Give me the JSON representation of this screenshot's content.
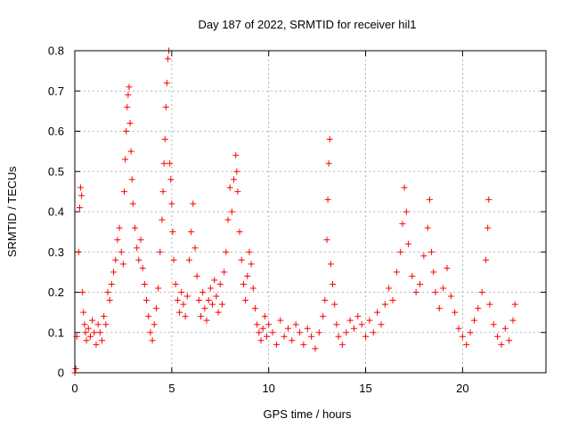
{
  "chart_data": {
    "type": "scatter",
    "title": "Day 187 of 2022, SRMTID for receiver hil1",
    "xlabel": "GPS time / hours",
    "ylabel": "SRMTID / TECUs",
    "xlim": [
      0,
      24.3
    ],
    "ylim": [
      0,
      0.8
    ],
    "x_ticks": [
      0,
      5,
      10,
      15,
      20
    ],
    "x_tick_labels": [
      "0",
      "5",
      "10",
      "15",
      "20"
    ],
    "y_ticks": [
      0,
      0.1,
      0.2,
      0.3,
      0.4,
      0.5,
      0.6,
      0.7,
      0.8
    ],
    "y_tick_labels": [
      "0",
      "0.1",
      "0.2",
      "0.3",
      "0.4",
      "0.5",
      "0.6",
      "0.7",
      "0.8"
    ],
    "grid": true,
    "marker": "plus",
    "color": "#ff0000",
    "series": [
      {
        "name": "SRMTID",
        "points": [
          [
            0.0,
            0.0
          ],
          [
            0.05,
            0.01
          ],
          [
            0.1,
            0.09
          ],
          [
            0.2,
            0.3
          ],
          [
            0.25,
            0.41
          ],
          [
            0.3,
            0.46
          ],
          [
            0.35,
            0.44
          ],
          [
            0.4,
            0.2
          ],
          [
            0.45,
            0.15
          ],
          [
            0.5,
            0.12
          ],
          [
            0.55,
            0.1
          ],
          [
            0.6,
            0.08
          ],
          [
            0.7,
            0.11
          ],
          [
            0.8,
            0.09
          ],
          [
            0.9,
            0.13
          ],
          [
            1.0,
            0.1
          ],
          [
            1.1,
            0.07
          ],
          [
            1.2,
            0.12
          ],
          [
            1.3,
            0.1
          ],
          [
            1.4,
            0.08
          ],
          [
            1.5,
            0.14
          ],
          [
            1.6,
            0.12
          ],
          [
            1.7,
            0.2
          ],
          [
            1.8,
            0.18
          ],
          [
            1.9,
            0.22
          ],
          [
            2.0,
            0.25
          ],
          [
            2.1,
            0.28
          ],
          [
            2.2,
            0.33
          ],
          [
            2.3,
            0.36
          ],
          [
            2.4,
            0.3
          ],
          [
            2.5,
            0.27
          ],
          [
            2.55,
            0.45
          ],
          [
            2.6,
            0.53
          ],
          [
            2.65,
            0.6
          ],
          [
            2.7,
            0.66
          ],
          [
            2.75,
            0.69
          ],
          [
            2.8,
            0.71
          ],
          [
            2.85,
            0.62
          ],
          [
            2.9,
            0.55
          ],
          [
            2.95,
            0.48
          ],
          [
            3.0,
            0.42
          ],
          [
            3.1,
            0.36
          ],
          [
            3.2,
            0.31
          ],
          [
            3.3,
            0.28
          ],
          [
            3.4,
            0.33
          ],
          [
            3.5,
            0.26
          ],
          [
            3.6,
            0.22
          ],
          [
            3.7,
            0.18
          ],
          [
            3.8,
            0.14
          ],
          [
            3.9,
            0.1
          ],
          [
            4.0,
            0.08
          ],
          [
            4.1,
            0.12
          ],
          [
            4.2,
            0.16
          ],
          [
            4.3,
            0.21
          ],
          [
            4.4,
            0.3
          ],
          [
            4.5,
            0.38
          ],
          [
            4.55,
            0.45
          ],
          [
            4.6,
            0.52
          ],
          [
            4.65,
            0.58
          ],
          [
            4.7,
            0.66
          ],
          [
            4.75,
            0.72
          ],
          [
            4.8,
            0.78
          ],
          [
            4.85,
            0.8
          ],
          [
            4.9,
            0.52
          ],
          [
            4.95,
            0.48
          ],
          [
            5.0,
            0.42
          ],
          [
            5.05,
            0.35
          ],
          [
            5.1,
            0.28
          ],
          [
            5.2,
            0.22
          ],
          [
            5.3,
            0.18
          ],
          [
            5.4,
            0.15
          ],
          [
            5.5,
            0.2
          ],
          [
            5.6,
            0.17
          ],
          [
            5.7,
            0.14
          ],
          [
            5.8,
            0.19
          ],
          [
            5.9,
            0.28
          ],
          [
            6.0,
            0.35
          ],
          [
            6.1,
            0.42
          ],
          [
            6.2,
            0.31
          ],
          [
            6.3,
            0.24
          ],
          [
            6.4,
            0.18
          ],
          [
            6.5,
            0.14
          ],
          [
            6.6,
            0.2
          ],
          [
            6.7,
            0.16
          ],
          [
            6.8,
            0.13
          ],
          [
            6.9,
            0.18
          ],
          [
            7.0,
            0.21
          ],
          [
            7.1,
            0.17
          ],
          [
            7.2,
            0.23
          ],
          [
            7.3,
            0.19
          ],
          [
            7.4,
            0.15
          ],
          [
            7.5,
            0.22
          ],
          [
            7.6,
            0.17
          ],
          [
            7.7,
            0.25
          ],
          [
            7.8,
            0.3
          ],
          [
            7.9,
            0.38
          ],
          [
            8.0,
            0.46
          ],
          [
            8.1,
            0.4
          ],
          [
            8.2,
            0.48
          ],
          [
            8.3,
            0.54
          ],
          [
            8.35,
            0.5
          ],
          [
            8.4,
            0.45
          ],
          [
            8.5,
            0.35
          ],
          [
            8.6,
            0.28
          ],
          [
            8.7,
            0.22
          ],
          [
            8.8,
            0.18
          ],
          [
            8.9,
            0.24
          ],
          [
            9.0,
            0.3
          ],
          [
            9.1,
            0.27
          ],
          [
            9.2,
            0.21
          ],
          [
            9.3,
            0.16
          ],
          [
            9.4,
            0.12
          ],
          [
            9.5,
            0.1
          ],
          [
            9.6,
            0.08
          ],
          [
            9.7,
            0.11
          ],
          [
            9.8,
            0.14
          ],
          [
            9.9,
            0.09
          ],
          [
            10.0,
            0.12
          ],
          [
            10.2,
            0.1
          ],
          [
            10.4,
            0.07
          ],
          [
            10.6,
            0.13
          ],
          [
            10.8,
            0.09
          ],
          [
            11.0,
            0.11
          ],
          [
            11.2,
            0.08
          ],
          [
            11.4,
            0.12
          ],
          [
            11.6,
            0.1
          ],
          [
            11.8,
            0.07
          ],
          [
            12.0,
            0.11
          ],
          [
            12.2,
            0.09
          ],
          [
            12.4,
            0.06
          ],
          [
            12.6,
            0.1
          ],
          [
            12.8,
            0.14
          ],
          [
            12.9,
            0.18
          ],
          [
            13.0,
            0.33
          ],
          [
            13.05,
            0.43
          ],
          [
            13.1,
            0.52
          ],
          [
            13.15,
            0.58
          ],
          [
            13.2,
            0.27
          ],
          [
            13.3,
            0.22
          ],
          [
            13.4,
            0.17
          ],
          [
            13.5,
            0.12
          ],
          [
            13.6,
            0.09
          ],
          [
            13.8,
            0.07
          ],
          [
            14.0,
            0.1
          ],
          [
            14.2,
            0.13
          ],
          [
            14.4,
            0.11
          ],
          [
            14.6,
            0.14
          ],
          [
            14.8,
            0.12
          ],
          [
            15.0,
            0.09
          ],
          [
            15.2,
            0.13
          ],
          [
            15.4,
            0.1
          ],
          [
            15.6,
            0.15
          ],
          [
            15.8,
            0.12
          ],
          [
            16.0,
            0.17
          ],
          [
            16.2,
            0.21
          ],
          [
            16.4,
            0.18
          ],
          [
            16.6,
            0.25
          ],
          [
            16.8,
            0.3
          ],
          [
            16.9,
            0.37
          ],
          [
            17.0,
            0.46
          ],
          [
            17.1,
            0.4
          ],
          [
            17.2,
            0.32
          ],
          [
            17.4,
            0.24
          ],
          [
            17.6,
            0.2
          ],
          [
            17.8,
            0.22
          ],
          [
            18.0,
            0.29
          ],
          [
            18.2,
            0.36
          ],
          [
            18.3,
            0.43
          ],
          [
            18.4,
            0.3
          ],
          [
            18.5,
            0.25
          ],
          [
            18.6,
            0.2
          ],
          [
            18.8,
            0.16
          ],
          [
            19.0,
            0.21
          ],
          [
            19.2,
            0.26
          ],
          [
            19.4,
            0.19
          ],
          [
            19.6,
            0.15
          ],
          [
            19.8,
            0.11
          ],
          [
            20.0,
            0.09
          ],
          [
            20.2,
            0.07
          ],
          [
            20.4,
            0.1
          ],
          [
            20.6,
            0.13
          ],
          [
            20.8,
            0.16
          ],
          [
            21.0,
            0.2
          ],
          [
            21.2,
            0.28
          ],
          [
            21.3,
            0.36
          ],
          [
            21.35,
            0.43
          ],
          [
            21.4,
            0.17
          ],
          [
            21.6,
            0.12
          ],
          [
            21.8,
            0.09
          ],
          [
            22.0,
            0.07
          ],
          [
            22.2,
            0.11
          ],
          [
            22.4,
            0.08
          ],
          [
            22.6,
            0.13
          ],
          [
            22.7,
            0.17
          ]
        ]
      }
    ]
  }
}
